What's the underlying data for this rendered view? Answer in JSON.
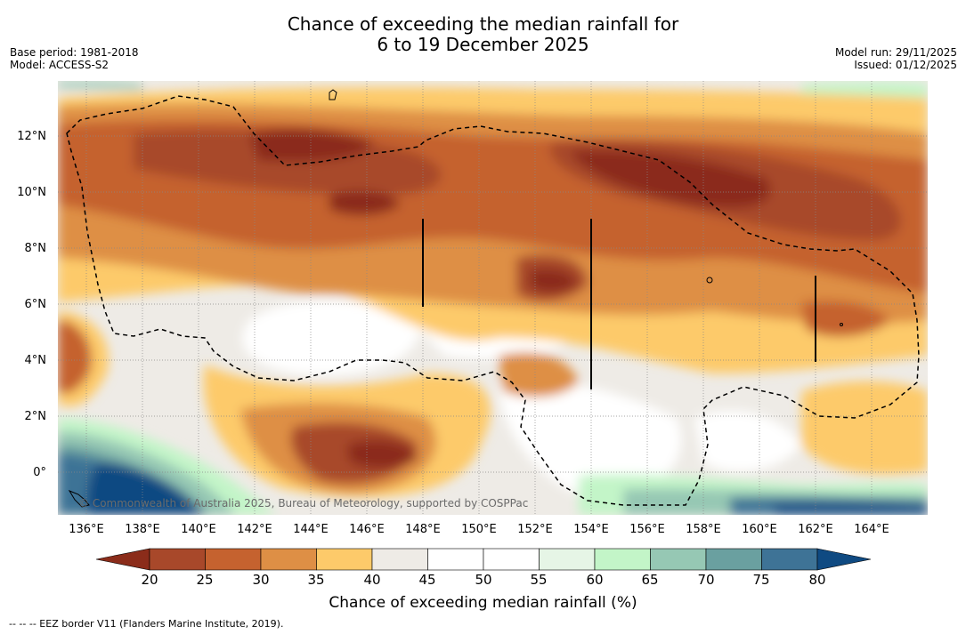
{
  "title": {
    "line1": "Chance of exceeding the median rainfall for",
    "line2": "6 to 19 December 2025"
  },
  "meta": {
    "base_period": "Base period: 1981-2018",
    "model": "Model: ACCESS-S2",
    "model_run": "Model run: 29/11/2025",
    "issued": "Issued: 01/12/2025"
  },
  "map": {
    "lat_ticks": [
      "12°N",
      "10°N",
      "8°N",
      "6°N",
      "4°N",
      "2°N",
      "0°"
    ],
    "lon_ticks": [
      "136°E",
      "138°E",
      "140°E",
      "142°E",
      "144°E",
      "146°E",
      "148°E",
      "150°E",
      "152°E",
      "154°E",
      "156°E",
      "158°E",
      "160°E",
      "162°E",
      "164°E"
    ],
    "copyright": "© Commonwealth of Australia 2025, Bureau of Meteorology, supported by COSPPac"
  },
  "colorbar": {
    "title": "Chance of exceeding median rainfall (%)",
    "ticks": [
      "20",
      "25",
      "30",
      "35",
      "40",
      "45",
      "50",
      "55",
      "60",
      "65",
      "70",
      "75",
      "80"
    ],
    "colors": [
      "#8b2c1a",
      "#a8482a",
      "#c5622f",
      "#de8f45",
      "#fdca6a",
      "#eeebe6",
      "#ffffff",
      "#ffffff",
      "#e6f5e6",
      "#c3f5c8",
      "#96c8b4",
      "#6aa0a0",
      "#3e7396",
      "#0f4a82"
    ]
  },
  "footnote": "-- -- -- EEZ border V11 (Flanders Marine Institute, 2019)."
}
